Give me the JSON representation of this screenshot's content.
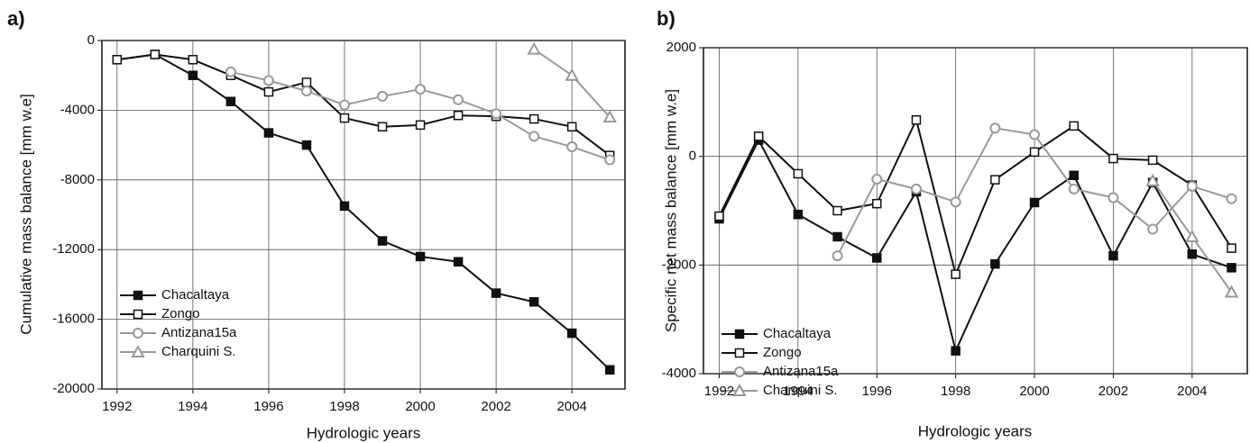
{
  "chart_data": [
    {
      "type": "line",
      "panel_label": "a)",
      "x_label": "Hydrologic years",
      "y_label": "Cumulative mass balance [mm w.e]",
      "x": [
        1992,
        1993,
        1994,
        1995,
        1996,
        1997,
        1998,
        1999,
        2000,
        2001,
        2002,
        2003,
        2004,
        2005
      ],
      "xlim": [
        1991.6,
        2005.4
      ],
      "xticks": [
        1992,
        1994,
        1996,
        1998,
        2000,
        2002,
        2004
      ],
      "ylim": [
        -20000,
        0
      ],
      "yticks": [
        -20000,
        -16000,
        -12000,
        -8000,
        -4000,
        0
      ],
      "grid": true,
      "legend": "lower left",
      "series": [
        {
          "name": "Chacaltaya",
          "color": "#111111",
          "marker": "square-filled",
          "values": [
            -1100,
            -800,
            -2000,
            -3500,
            -5300,
            -6000,
            -9500,
            -11500,
            -12400,
            -12700,
            -14500,
            -15000,
            -16800,
            -18900
          ]
        },
        {
          "name": "Zongo",
          "color": "#111111",
          "marker": "square-open",
          "values": [
            -1100,
            -800,
            -1100,
            -2000,
            -2950,
            -2400,
            -4450,
            -4950,
            -4850,
            -4300,
            -4350,
            -4500,
            -4950,
            -6600
          ]
        },
        {
          "name": "Antizana15a",
          "color": "#999999",
          "marker": "circle-open",
          "values": [
            null,
            null,
            null,
            -1800,
            -2300,
            -2900,
            -3700,
            -3200,
            -2800,
            -3400,
            -4200,
            -5500,
            -6100,
            -6850
          ]
        },
        {
          "name": "Charquini S.",
          "color": "#999999",
          "marker": "triangle-open",
          "values": [
            null,
            null,
            null,
            null,
            null,
            null,
            null,
            null,
            null,
            null,
            null,
            -500,
            -2000,
            -4400
          ]
        }
      ]
    },
    {
      "type": "line",
      "panel_label": "b)",
      "x_label": "Hydrologic years",
      "y_label": "Specific net mass balance [mm w.e]",
      "x": [
        1992,
        1993,
        1994,
        1995,
        1996,
        1997,
        1998,
        1999,
        2000,
        2001,
        2002,
        2003,
        2004,
        2005
      ],
      "xlim": [
        1991.6,
        2005.4
      ],
      "xticks": [
        1992,
        1994,
        1996,
        1998,
        2000,
        2002,
        2004
      ],
      "ylim": [
        -4000,
        2000
      ],
      "yticks": [
        -4000,
        -2000,
        0,
        2000
      ],
      "grid": true,
      "legend": "lower left",
      "series": [
        {
          "name": "Chacaltaya",
          "color": "#111111",
          "marker": "square-filled",
          "values": [
            -1150,
            300,
            -1070,
            -1480,
            -1870,
            -650,
            -3580,
            -1980,
            -850,
            -350,
            -1830,
            -480,
            -1800,
            -2050
          ]
        },
        {
          "name": "Zongo",
          "color": "#111111",
          "marker": "square-open",
          "values": [
            -1100,
            370,
            -320,
            -1000,
            -870,
            670,
            -2170,
            -430,
            80,
            560,
            -40,
            -70,
            -530,
            -1690
          ]
        },
        {
          "name": "Antizana15a",
          "color": "#999999",
          "marker": "circle-open",
          "values": [
            null,
            null,
            null,
            -1830,
            -420,
            -600,
            -840,
            520,
            400,
            -600,
            -760,
            -1340,
            -550,
            -780
          ]
        },
        {
          "name": "Charquini S.",
          "color": "#999999",
          "marker": "triangle-open",
          "values": [
            null,
            null,
            null,
            null,
            null,
            null,
            null,
            null,
            null,
            null,
            null,
            -450,
            -1480,
            -2500
          ]
        }
      ]
    }
  ]
}
